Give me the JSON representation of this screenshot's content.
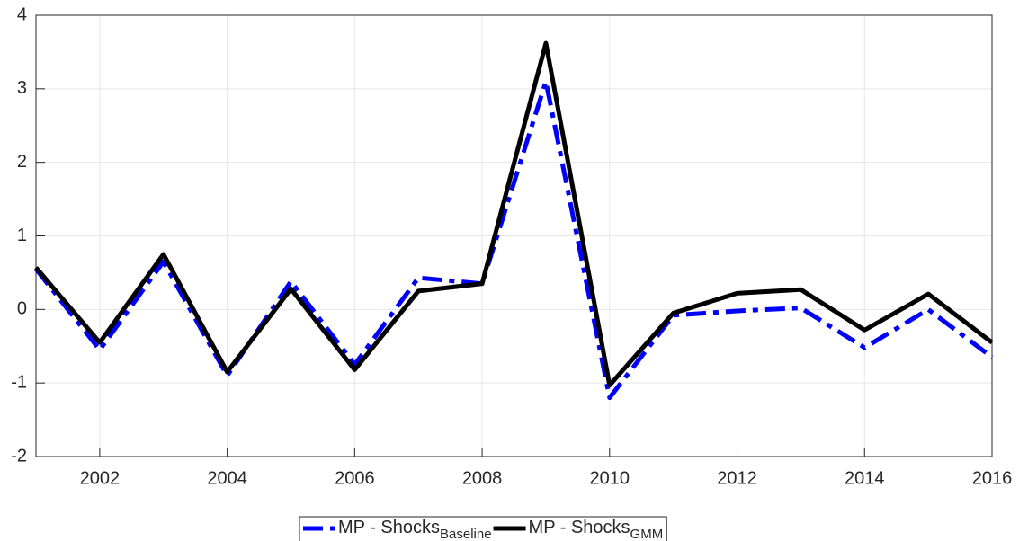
{
  "chart_data": {
    "type": "line",
    "x": [
      2001,
      2002,
      2003,
      2004,
      2005,
      2006,
      2007,
      2008,
      2009,
      2010,
      2011,
      2012,
      2013,
      2014,
      2015,
      2016
    ],
    "series": [
      {
        "name": "MP - Shocks",
        "name_subscript": "Baseline",
        "color": "#0000ff",
        "style": "dashdot",
        "values": [
          0.55,
          -0.55,
          0.65,
          -0.9,
          0.38,
          -0.75,
          0.43,
          0.35,
          3.1,
          -1.2,
          -0.08,
          -0.02,
          0.02,
          -0.52,
          0.0,
          -0.65
        ]
      },
      {
        "name": "MP - Shocks",
        "name_subscript": "GMM",
        "color": "#000000",
        "style": "solid",
        "values": [
          0.57,
          -0.45,
          0.75,
          -0.85,
          0.28,
          -0.82,
          0.25,
          0.35,
          3.62,
          -1.03,
          -0.05,
          0.22,
          0.27,
          -0.28,
          0.21,
          -0.45
        ]
      }
    ],
    "xlim": [
      2001,
      2016
    ],
    "xticks": [
      2002,
      2004,
      2006,
      2008,
      2010,
      2012,
      2014,
      2016
    ],
    "ylim": [
      -2,
      4
    ],
    "yticks": [
      -2,
      -1,
      0,
      1,
      2,
      3,
      4
    ],
    "grid": true,
    "legend": "bottom"
  }
}
